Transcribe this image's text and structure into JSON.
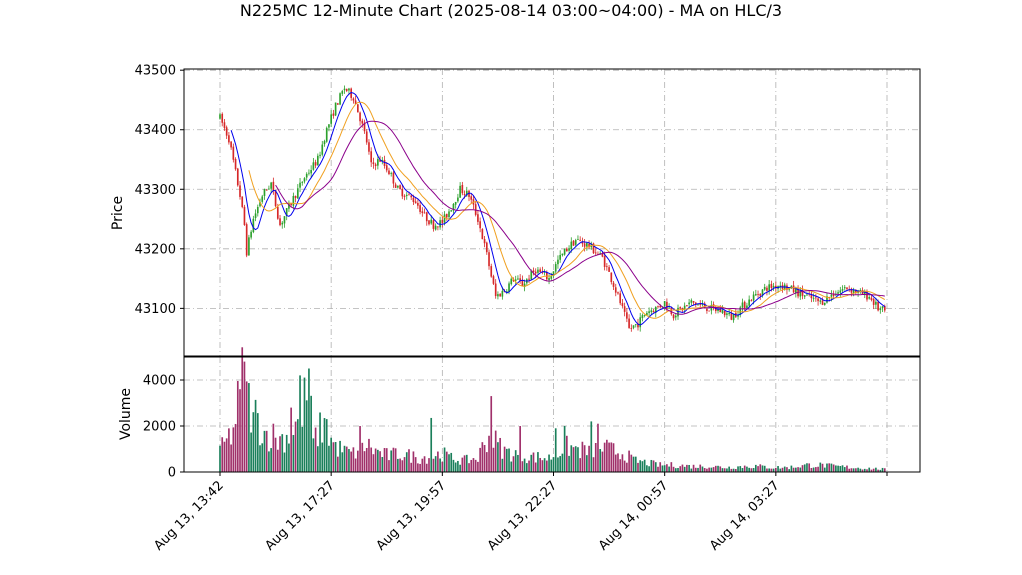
{
  "chart_data": {
    "type": "candlestick",
    "title": "N225MC 12-Minute Chart (2025-08-14 03:00~04:00) - MA on HLC/3",
    "price_panel": {
      "ylabel": "Price",
      "ylim": [
        43020,
        43502
      ],
      "yticks": [
        43100,
        43200,
        43300,
        43400,
        43500
      ]
    },
    "volume_panel": {
      "ylabel": "Volume",
      "ylim": [
        0,
        5000
      ],
      "yticks": [
        0,
        2000,
        4000
      ]
    },
    "x_ticks": [
      "Aug 13, 13:42",
      "Aug 13, 17:27",
      "Aug 13, 19:57",
      "Aug 13, 22:27",
      "Aug 14, 00:57",
      "Aug 14, 03:27"
    ],
    "n_bars": 300,
    "grid": true,
    "colors": {
      "up": "#2ca02c",
      "down": "#d62728",
      "volume_up": "#1a7f5a",
      "volume_down": "#a0306a",
      "ma_fast": "#0000ee",
      "ma_mid": "#f0a020",
      "ma_slow": "#8b008b"
    },
    "price_path": [
      [
        0,
        43420
      ],
      [
        4,
        43385
      ],
      [
        9,
        43290
      ],
      [
        11,
        43240
      ],
      [
        12,
        43195
      ],
      [
        15,
        43250
      ],
      [
        19,
        43290
      ],
      [
        23,
        43310
      ],
      [
        27,
        43240
      ],
      [
        33,
        43285
      ],
      [
        38,
        43320
      ],
      [
        44,
        43350
      ],
      [
        48,
        43400
      ],
      [
        52,
        43440
      ],
      [
        56,
        43470
      ],
      [
        60,
        43455
      ],
      [
        63,
        43420
      ],
      [
        66,
        43380
      ],
      [
        68,
        43340
      ],
      [
        72,
        43350
      ],
      [
        76,
        43330
      ],
      [
        80,
        43300
      ],
      [
        88,
        43280
      ],
      [
        92,
        43255
      ],
      [
        96,
        43240
      ],
      [
        100,
        43245
      ],
      [
        104,
        43270
      ],
      [
        108,
        43300
      ],
      [
        112,
        43290
      ],
      [
        116,
        43250
      ],
      [
        120,
        43190
      ],
      [
        124,
        43120
      ],
      [
        128,
        43130
      ],
      [
        132,
        43150
      ],
      [
        136,
        43140
      ],
      [
        142,
        43165
      ],
      [
        148,
        43150
      ],
      [
        152,
        43180
      ],
      [
        156,
        43200
      ],
      [
        160,
        43215
      ],
      [
        166,
        43205
      ],
      [
        172,
        43185
      ],
      [
        176,
        43150
      ],
      [
        180,
        43110
      ],
      [
        184,
        43065
      ],
      [
        188,
        43075
      ],
      [
        192,
        43095
      ],
      [
        196,
        43100
      ],
      [
        200,
        43110
      ],
      [
        204,
        43090
      ],
      [
        208,
        43100
      ],
      [
        212,
        43110
      ],
      [
        216,
        43105
      ],
      [
        220,
        43100
      ],
      [
        226,
        43095
      ],
      [
        230,
        43085
      ],
      [
        234,
        43100
      ],
      [
        240,
        43120
      ],
      [
        246,
        43135
      ],
      [
        252,
        43140
      ],
      [
        258,
        43130
      ],
      [
        264,
        43120
      ],
      [
        270,
        43110
      ],
      [
        276,
        43125
      ],
      [
        282,
        43135
      ],
      [
        288,
        43125
      ],
      [
        292,
        43120
      ],
      [
        296,
        43100
      ],
      [
        299,
        43095
      ]
    ],
    "volume_path": [
      [
        0,
        900
      ],
      [
        6,
        1800
      ],
      [
        10,
        4000
      ],
      [
        12,
        3200
      ],
      [
        16,
        2400
      ],
      [
        20,
        1700
      ],
      [
        26,
        1400
      ],
      [
        32,
        1600
      ],
      [
        36,
        2500
      ],
      [
        40,
        3500
      ],
      [
        42,
        1300
      ],
      [
        46,
        2000
      ],
      [
        52,
        1100
      ],
      [
        56,
        900
      ],
      [
        60,
        800
      ],
      [
        66,
        1200
      ],
      [
        70,
        900
      ],
      [
        76,
        700
      ],
      [
        80,
        800
      ],
      [
        86,
        700
      ],
      [
        90,
        600
      ],
      [
        96,
        700
      ],
      [
        100,
        800
      ],
      [
        104,
        600
      ],
      [
        110,
        500
      ],
      [
        116,
        600
      ],
      [
        120,
        1500
      ],
      [
        124,
        1300
      ],
      [
        128,
        900
      ],
      [
        132,
        800
      ],
      [
        136,
        700
      ],
      [
        142,
        650
      ],
      [
        148,
        600
      ],
      [
        152,
        900
      ],
      [
        156,
        1100
      ],
      [
        160,
        1000
      ],
      [
        166,
        900
      ],
      [
        170,
        1100
      ],
      [
        174,
        1000
      ],
      [
        178,
        900
      ],
      [
        182,
        800
      ],
      [
        186,
        500
      ],
      [
        192,
        400
      ],
      [
        198,
        300
      ],
      [
        204,
        300
      ],
      [
        212,
        250
      ],
      [
        220,
        250
      ],
      [
        228,
        200
      ],
      [
        236,
        250
      ],
      [
        242,
        250
      ],
      [
        248,
        200
      ],
      [
        256,
        200
      ],
      [
        264,
        300
      ],
      [
        270,
        300
      ],
      [
        276,
        250
      ],
      [
        284,
        200
      ],
      [
        299,
        120
      ]
    ],
    "volume_spikes": [
      [
        9,
        3600
      ],
      [
        11,
        4800
      ],
      [
        15,
        2600
      ],
      [
        24,
        2100
      ],
      [
        32,
        2800
      ],
      [
        36,
        4200
      ],
      [
        40,
        4500
      ],
      [
        48,
        2300
      ],
      [
        63,
        2000
      ],
      [
        95,
        2350
      ],
      [
        122,
        3300
      ],
      [
        135,
        2000
      ],
      [
        151,
        1900
      ],
      [
        155,
        2000
      ],
      [
        167,
        2200
      ],
      [
        170,
        2100
      ]
    ],
    "series": [
      {
        "name": "",
        "type": "line",
        "period": 6,
        "color": "#0000ee"
      },
      {
        "name": "",
        "type": "line",
        "period": 14,
        "color": "#f0a020"
      },
      {
        "name": "",
        "type": "line",
        "period": 26,
        "color": "#8b008b"
      }
    ]
  }
}
